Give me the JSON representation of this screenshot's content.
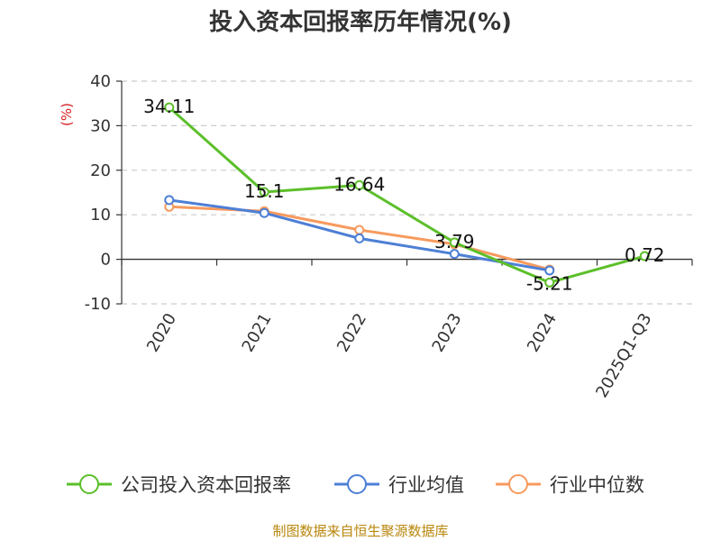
{
  "title": "投入资本回报率历年情况(%)",
  "source": "制图数据来自恒生聚源数据库",
  "chart_data": {
    "type": "line",
    "unit": "(%)",
    "categories": [
      "2020",
      "2021",
      "2022",
      "2023",
      "2024",
      "2025Q1-Q3"
    ],
    "ylim": [
      -10,
      40
    ],
    "yticks": [
      -10,
      0,
      10,
      20,
      30,
      40
    ],
    "grid": true,
    "legend_placement": "bottom",
    "series": [
      {
        "name": "公司投入资本回报率",
        "color": "#5cbf2a",
        "values": [
          34.11,
          15.1,
          16.64,
          3.79,
          -5.21,
          0.72
        ],
        "labels": [
          "34.11",
          "15.1",
          "16.64",
          "3.79",
          "-5.21",
          "0.72"
        ]
      },
      {
        "name": "行业均值",
        "color": "#4d7fd6",
        "values": [
          13.3,
          10.4,
          4.7,
          1.2,
          -2.5,
          null
        ]
      },
      {
        "name": "行业中位数",
        "color": "#f79a5e",
        "values": [
          11.8,
          10.8,
          6.6,
          3.4,
          -2.3,
          null
        ]
      }
    ]
  }
}
